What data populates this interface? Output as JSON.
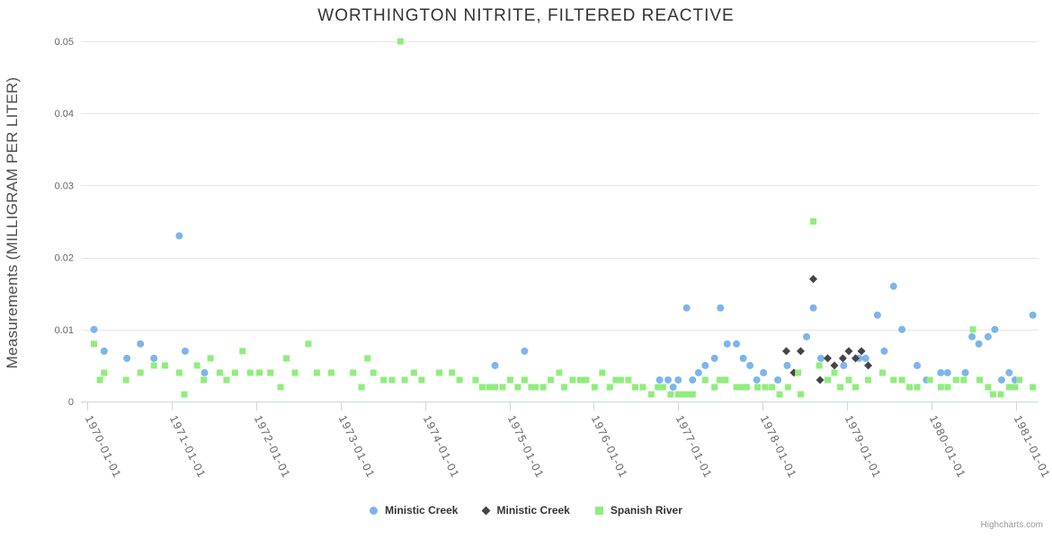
{
  "credit": "Highcharts.com",
  "colors": {
    "series_blue": "#7cb5ec",
    "series_dark": "#434348",
    "series_green": "#90ed7d",
    "grid_line": "#e6e6e6",
    "axis_line": "#ccd6eb",
    "title_text": "#333333",
    "axis_label_text": "#666666",
    "y_title_text": "#4d4d4d",
    "legend_text": "#333333",
    "credit_text": "#999999"
  },
  "chart_data": {
    "type": "scatter",
    "title": "WORTHINGTON NITRITE, FILTERED REACTIVE",
    "xlabel": "",
    "ylabel": "Measurements (MILLIGRAM PER LITER)",
    "ylim": [
      0,
      0.05
    ],
    "xlim_years": [
      1969.93,
      1981.27
    ],
    "grid": true,
    "legend_position": "bottom",
    "yticks": [
      0,
      0.01,
      0.02,
      0.03,
      0.04,
      0.05
    ],
    "ytick_labels": [
      "0",
      "0.01",
      "0.02",
      "0.03",
      "0.04",
      "0.05"
    ],
    "xticks_years": [
      1970,
      1971,
      1972,
      1973,
      1974,
      1975,
      1976,
      1977,
      1978,
      1979,
      1980,
      1981
    ],
    "xtick_labels": [
      "1970-01-01",
      "1971-01-01",
      "1972-01-01",
      "1973-01-01",
      "1974-01-01",
      "1975-01-01",
      "1976-01-01",
      "1977-01-01",
      "1978-01-01",
      "1979-01-01",
      "1980-01-01",
      "1981-01-01"
    ],
    "series": [
      {
        "name": "Ministic Creek",
        "marker": "circle",
        "color": "#7cb5ec",
        "points": [
          [
            1970.08,
            0.01
          ],
          [
            1970.2,
            0.007
          ],
          [
            1970.47,
            0.006
          ],
          [
            1970.63,
            0.008
          ],
          [
            1970.79,
            0.006
          ],
          [
            1971.09,
            0.023
          ],
          [
            1971.16,
            0.007
          ],
          [
            1971.39,
            0.004
          ],
          [
            1974.83,
            0.005
          ],
          [
            1975.18,
            0.007
          ],
          [
            1976.78,
            0.003
          ],
          [
            1976.88,
            0.003
          ],
          [
            1976.94,
            0.002
          ],
          [
            1977.0,
            0.003
          ],
          [
            1977.1,
            0.013
          ],
          [
            1977.17,
            0.003
          ],
          [
            1977.24,
            0.004
          ],
          [
            1977.32,
            0.005
          ],
          [
            1977.43,
            0.006
          ],
          [
            1977.5,
            0.013
          ],
          [
            1977.58,
            0.008
          ],
          [
            1977.69,
            0.008
          ],
          [
            1977.77,
            0.006
          ],
          [
            1977.85,
            0.005
          ],
          [
            1977.93,
            0.003
          ],
          [
            1978.01,
            0.004
          ],
          [
            1978.18,
            0.003
          ],
          [
            1978.29,
            0.005
          ],
          [
            1978.52,
            0.009
          ],
          [
            1978.6,
            0.013
          ],
          [
            1978.69,
            0.006
          ],
          [
            1978.96,
            0.005
          ],
          [
            1979.14,
            0.006
          ],
          [
            1979.22,
            0.006
          ],
          [
            1979.36,
            0.012
          ],
          [
            1979.44,
            0.007
          ],
          [
            1979.55,
            0.016
          ],
          [
            1979.65,
            0.01
          ],
          [
            1979.83,
            0.005
          ],
          [
            1979.94,
            0.003
          ],
          [
            1980.11,
            0.004
          ],
          [
            1980.19,
            0.004
          ],
          [
            1980.4,
            0.004
          ],
          [
            1980.48,
            0.009
          ],
          [
            1980.56,
            0.008
          ],
          [
            1980.67,
            0.009
          ],
          [
            1980.75,
            0.01
          ],
          [
            1980.83,
            0.003
          ],
          [
            1980.92,
            0.004
          ],
          [
            1980.99,
            0.003
          ],
          [
            1981.2,
            0.012
          ]
        ]
      },
      {
        "name": "Ministic Creek",
        "marker": "diamond",
        "color": "#434348",
        "points": [
          [
            1978.28,
            0.007
          ],
          [
            1978.37,
            0.004
          ],
          [
            1978.45,
            0.007
          ],
          [
            1978.6,
            0.017
          ],
          [
            1978.68,
            0.003
          ],
          [
            1978.77,
            0.006
          ],
          [
            1978.85,
            0.005
          ],
          [
            1978.95,
            0.006
          ],
          [
            1979.02,
            0.007
          ],
          [
            1979.1,
            0.006
          ],
          [
            1979.17,
            0.007
          ],
          [
            1979.25,
            0.005
          ]
        ]
      },
      {
        "name": "Spanish River",
        "marker": "square",
        "color": "#90ed7d",
        "points": [
          [
            1970.08,
            0.008
          ],
          [
            1970.15,
            0.003
          ],
          [
            1970.2,
            0.004
          ],
          [
            1970.46,
            0.003
          ],
          [
            1970.63,
            0.004
          ],
          [
            1970.79,
            0.005
          ],
          [
            1970.92,
            0.005
          ],
          [
            1971.09,
            0.004
          ],
          [
            1971.15,
            0.001
          ],
          [
            1971.3,
            0.005
          ],
          [
            1971.38,
            0.003
          ],
          [
            1971.46,
            0.006
          ],
          [
            1971.57,
            0.004
          ],
          [
            1971.65,
            0.003
          ],
          [
            1971.75,
            0.004
          ],
          [
            1971.84,
            0.007
          ],
          [
            1971.93,
            0.004
          ],
          [
            1972.04,
            0.004
          ],
          [
            1972.17,
            0.004
          ],
          [
            1972.29,
            0.002
          ],
          [
            1972.36,
            0.006
          ],
          [
            1972.46,
            0.004
          ],
          [
            1972.62,
            0.008
          ],
          [
            1972.72,
            0.004
          ],
          [
            1972.89,
            0.004
          ],
          [
            1973.15,
            0.004
          ],
          [
            1973.25,
            0.002
          ],
          [
            1973.32,
            0.006
          ],
          [
            1973.39,
            0.004
          ],
          [
            1973.51,
            0.003
          ],
          [
            1973.61,
            0.003
          ],
          [
            1973.71,
            0.05
          ],
          [
            1973.76,
            0.003
          ],
          [
            1973.87,
            0.004
          ],
          [
            1973.96,
            0.003
          ],
          [
            1974.17,
            0.004
          ],
          [
            1974.32,
            0.004
          ],
          [
            1974.41,
            0.003
          ],
          [
            1974.6,
            0.003
          ],
          [
            1974.68,
            0.002
          ],
          [
            1974.76,
            0.002
          ],
          [
            1974.83,
            0.002
          ],
          [
            1974.92,
            0.002
          ],
          [
            1975.01,
            0.003
          ],
          [
            1975.1,
            0.002
          ],
          [
            1975.18,
            0.003
          ],
          [
            1975.26,
            0.002
          ],
          [
            1975.31,
            0.002
          ],
          [
            1975.4,
            0.002
          ],
          [
            1975.49,
            0.003
          ],
          [
            1975.59,
            0.004
          ],
          [
            1975.65,
            0.002
          ],
          [
            1975.75,
            0.003
          ],
          [
            1975.84,
            0.003
          ],
          [
            1975.91,
            0.003
          ],
          [
            1976.01,
            0.002
          ],
          [
            1976.1,
            0.004
          ],
          [
            1976.19,
            0.002
          ],
          [
            1976.26,
            0.003
          ],
          [
            1976.32,
            0.003
          ],
          [
            1976.41,
            0.003
          ],
          [
            1976.49,
            0.002
          ],
          [
            1976.58,
            0.002
          ],
          [
            1976.68,
            0.001
          ],
          [
            1976.76,
            0.002
          ],
          [
            1976.82,
            0.002
          ],
          [
            1976.91,
            0.001
          ],
          [
            1977.0,
            0.001
          ],
          [
            1977.06,
            0.001
          ],
          [
            1977.11,
            0.001
          ],
          [
            1977.17,
            0.001
          ],
          [
            1977.32,
            0.003
          ],
          [
            1977.43,
            0.002
          ],
          [
            1977.49,
            0.003
          ],
          [
            1977.56,
            0.003
          ],
          [
            1977.69,
            0.002
          ],
          [
            1977.75,
            0.002
          ],
          [
            1977.81,
            0.002
          ],
          [
            1977.94,
            0.002
          ],
          [
            1978.03,
            0.002
          ],
          [
            1978.11,
            0.002
          ],
          [
            1978.2,
            0.001
          ],
          [
            1978.3,
            0.002
          ],
          [
            1978.42,
            0.004
          ],
          [
            1978.45,
            0.001
          ],
          [
            1978.6,
            0.025
          ],
          [
            1978.67,
            0.005
          ],
          [
            1978.77,
            0.003
          ],
          [
            1978.85,
            0.004
          ],
          [
            1978.92,
            0.002
          ],
          [
            1979.02,
            0.003
          ],
          [
            1979.1,
            0.002
          ],
          [
            1979.25,
            0.003
          ],
          [
            1979.42,
            0.004
          ],
          [
            1979.55,
            0.003
          ],
          [
            1979.65,
            0.003
          ],
          [
            1979.74,
            0.002
          ],
          [
            1979.83,
            0.002
          ],
          [
            1979.98,
            0.003
          ],
          [
            1980.11,
            0.002
          ],
          [
            1980.19,
            0.002
          ],
          [
            1980.29,
            0.003
          ],
          [
            1980.38,
            0.003
          ],
          [
            1980.49,
            0.01
          ],
          [
            1980.57,
            0.003
          ],
          [
            1980.67,
            0.002
          ],
          [
            1980.73,
            0.001
          ],
          [
            1980.82,
            0.001
          ],
          [
            1980.92,
            0.002
          ],
          [
            1980.99,
            0.002
          ],
          [
            1981.04,
            0.003
          ],
          [
            1981.2,
            0.002
          ]
        ]
      }
    ]
  }
}
